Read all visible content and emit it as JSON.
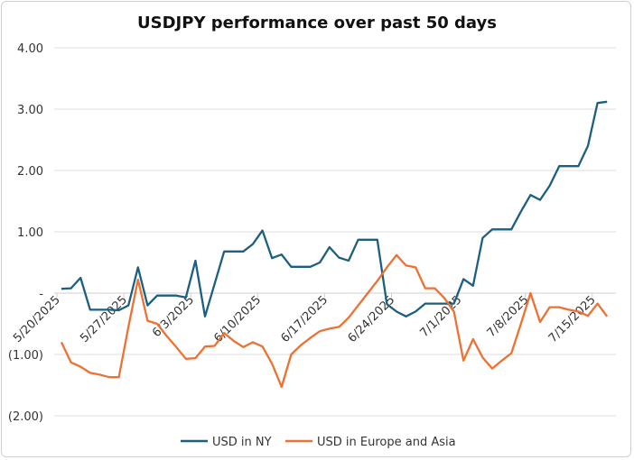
{
  "chart_data": {
    "type": "line",
    "title": "USDJPY performance over past 50 days",
    "xlabel": "",
    "ylabel": "",
    "ylim": [
      -2,
      4
    ],
    "yticks": [
      4,
      3,
      2,
      1,
      0,
      -1,
      -2
    ],
    "ytick_labels": [
      "4.00",
      "3.00",
      "2.00",
      "1.00",
      "-",
      "(1.00)",
      "(2.00)"
    ],
    "xtick_labels": [
      "5/20/2025",
      "5/27/2025",
      "6/3/2025",
      "6/10/2025",
      "6/17/2025",
      "6/24/2025",
      "7/1/2025",
      "7/8/2025",
      "7/15/2025"
    ],
    "x_start": "5/20/2025",
    "x_unit": "day",
    "grid": "horizontal",
    "legend_position": "bottom",
    "colors": {
      "ny": "#1c5f80",
      "eu": "#ed7132"
    },
    "series": [
      {
        "name": "USD in NY",
        "values": [
          0.07,
          0.08,
          0.25,
          -0.27,
          -0.27,
          -0.27,
          -0.28,
          -0.2,
          0.42,
          -0.2,
          -0.04,
          -0.04,
          -0.04,
          -0.07,
          0.53,
          -0.38,
          0.15,
          0.68,
          0.68,
          0.68,
          0.8,
          1.02,
          0.57,
          0.63,
          0.43,
          0.43,
          0.43,
          0.5,
          0.75,
          0.58,
          0.53,
          0.87,
          0.87,
          0.87,
          -0.18,
          -0.3,
          -0.38,
          -0.3,
          -0.17,
          -0.17,
          -0.17,
          -0.17,
          0.23,
          0.12,
          0.9,
          1.04,
          1.04,
          1.04,
          1.33,
          1.6,
          1.52,
          1.75,
          2.07,
          2.07,
          2.07,
          2.4,
          3.1,
          3.12
        ]
      },
      {
        "name": "USD in Europe and Asia",
        "values": [
          -0.8,
          -1.13,
          -1.2,
          -1.3,
          -1.33,
          -1.37,
          -1.37,
          -0.55,
          0.22,
          -0.45,
          -0.5,
          -0.7,
          -0.88,
          -1.07,
          -1.06,
          -0.87,
          -0.86,
          -0.65,
          -0.78,
          -0.88,
          -0.8,
          -0.87,
          -1.15,
          -1.53,
          -1.0,
          -0.85,
          -0.73,
          -0.62,
          -0.58,
          -0.55,
          -0.4,
          -0.2,
          0.0,
          0.2,
          0.42,
          0.62,
          0.45,
          0.42,
          0.08,
          0.08,
          -0.08,
          -0.3,
          -1.1,
          -0.75,
          -1.05,
          -1.23,
          -1.1,
          -0.98,
          -0.5,
          0.0,
          -0.47,
          -0.23,
          -0.23,
          -0.27,
          -0.3,
          -0.37,
          -0.17,
          -0.38
        ]
      }
    ]
  }
}
